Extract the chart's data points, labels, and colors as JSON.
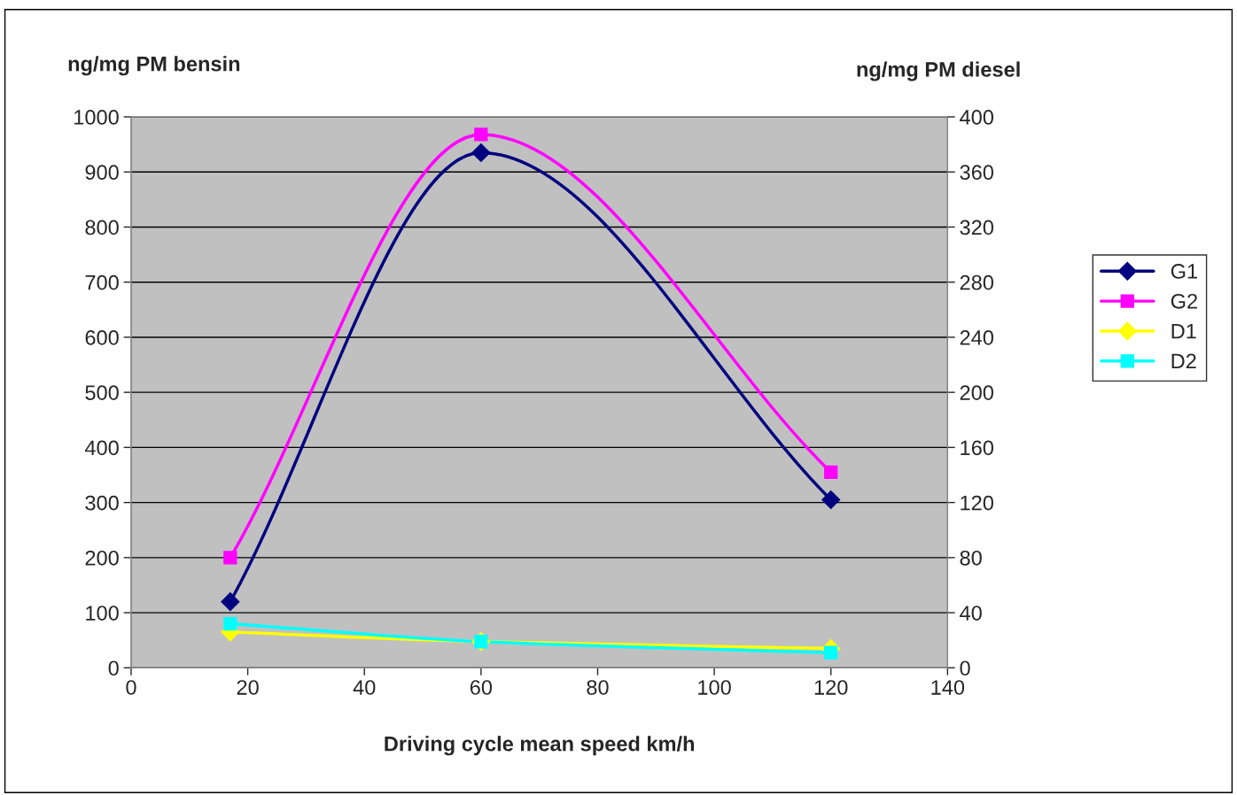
{
  "chart_data": {
    "type": "line",
    "xlabel": "Driving cycle mean speed km/h",
    "ylabel": "ng/mg PM bensin",
    "y2label": "ng/mg PM diesel",
    "x": [
      17,
      60,
      120
    ],
    "xlim": [
      0,
      140
    ],
    "xticks": [
      0,
      20,
      40,
      60,
      80,
      100,
      120,
      140
    ],
    "ylim": [
      0,
      1000
    ],
    "yticks": [
      0,
      100,
      200,
      300,
      400,
      500,
      600,
      700,
      800,
      900,
      1000
    ],
    "y2lim": [
      0,
      400
    ],
    "y2ticks": [
      0,
      40,
      80,
      120,
      160,
      200,
      240,
      280,
      320,
      360,
      400
    ],
    "grid": "y",
    "legend": "right",
    "line_style": "solid",
    "series": [
      {
        "name": "G1",
        "color": "#000080",
        "marker": "diamond",
        "values": [
          120,
          935,
          305
        ]
      },
      {
        "name": "G2",
        "color": "#ff00ff",
        "marker": "square",
        "values": [
          200,
          968,
          355
        ]
      },
      {
        "name": "D1",
        "color": "#ffff00",
        "marker": "diamond",
        "axis": "y2",
        "values": [
          26,
          19,
          14
        ]
      },
      {
        "name": "D2",
        "color": "#00ffff",
        "marker": "square",
        "axis": "y2",
        "values": [
          32,
          19,
          11
        ]
      }
    ]
  }
}
